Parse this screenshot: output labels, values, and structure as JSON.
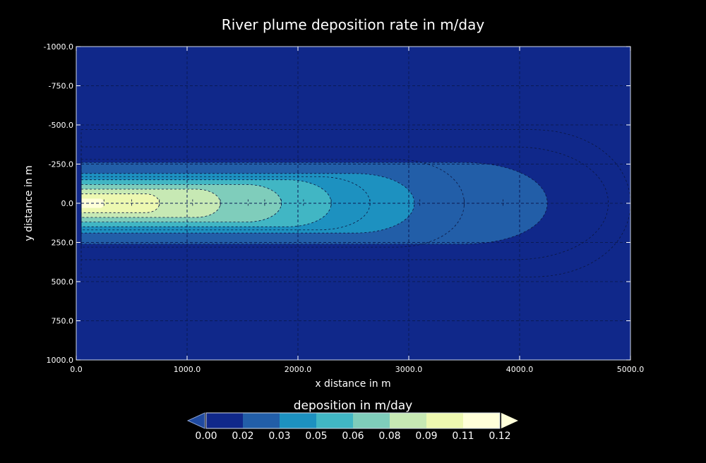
{
  "chart_data": {
    "type": "contour",
    "title": "River plume deposition rate in m/day",
    "xlabel": "x distance in m",
    "ylabel": "y distance in m",
    "xlim": [
      0,
      5000
    ],
    "ylim": [
      -1000,
      1000
    ],
    "y_inverted": true,
    "grid": true,
    "x_ticks": [
      "0.0",
      "1000.0",
      "2000.0",
      "3000.0",
      "4000.0",
      "5000.0"
    ],
    "y_ticks": [
      "-1000.0",
      "-750.0",
      "-500.0",
      "-250.0",
      "0.0",
      "250.0",
      "500.0",
      "750.0",
      "1000.0"
    ],
    "colorbar": {
      "title": "deposition in m/day",
      "ticks": [
        "0.00",
        "0.02",
        "0.03",
        "0.05",
        "0.06",
        "0.08",
        "0.09",
        "0.11",
        "0.12"
      ],
      "colors": [
        "#10288a",
        "#225ea8",
        "#1d91c0",
        "#41b6c4",
        "#7fcdbb",
        "#c7e9b4",
        "#edf8b1",
        "#ffffd9"
      ],
      "extend": "both"
    },
    "plume_contours": [
      {
        "level": 0.0,
        "fill": "#10288a",
        "length_x": 5000,
        "half_width_y": 1000
      },
      {
        "level": 0.02,
        "fill": "#225ea8",
        "length_x": 4250,
        "half_width_y": 260
      },
      {
        "level": 0.03,
        "fill": "#1d91c0",
        "length_x": 3050,
        "half_width_y": 190
      },
      {
        "level": 0.05,
        "fill": "#41b6c4",
        "length_x": 2300,
        "half_width_y": 150
      },
      {
        "level": 0.06,
        "fill": "#7fcdbb",
        "length_x": 1850,
        "half_width_y": 120
      },
      {
        "level": 0.08,
        "fill": "#c7e9b4",
        "length_x": 1300,
        "half_width_y": 90
      },
      {
        "level": 0.09,
        "fill": "#edf8b1",
        "length_x": 750,
        "half_width_y": 60
      },
      {
        "level": 0.11,
        "fill": "#ffffd9",
        "length_x": 250,
        "half_width_y": 30
      }
    ],
    "dashed_contours_x": [
      250,
      500,
      750,
      1050,
      1300,
      1550,
      1700,
      1850,
      2050,
      2300,
      2650,
      3100,
      3500,
      3850
    ]
  }
}
